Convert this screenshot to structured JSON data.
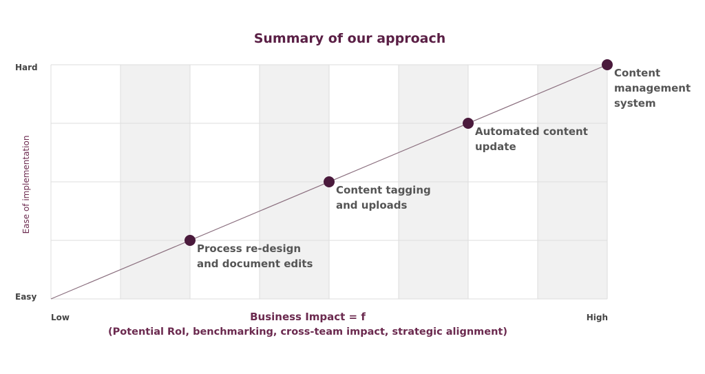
{
  "chart_data": {
    "type": "line",
    "title": "Summary of our approach",
    "xlabel": "Business Impact = f",
    "xlabel_sub": "(Potential RoI,  benchmarking, cross-team impact, strategic alignment)",
    "ylabel": "Ease of implementation",
    "x_tick_labels": {
      "low": "Low",
      "high": "High"
    },
    "y_tick_labels": {
      "low": "Easy",
      "high": "Hard"
    },
    "xlim": [
      0,
      8
    ],
    "ylim": [
      0,
      4
    ],
    "grid": true,
    "trend_line": {
      "from": [
        0,
        0
      ],
      "to": [
        8,
        4
      ]
    },
    "points": [
      {
        "x": 2,
        "y": 1,
        "label_lines": [
          "Process re-design",
          "and document edits"
        ]
      },
      {
        "x": 4,
        "y": 2,
        "label_lines": [
          "Content tagging",
          "and uploads"
        ]
      },
      {
        "x": 6,
        "y": 3,
        "label_lines": [
          "Automated content",
          "update"
        ]
      },
      {
        "x": 8,
        "y": 4,
        "label_lines": [
          "Content",
          "management",
          "system"
        ]
      }
    ],
    "colors": {
      "title": "#5a1f45",
      "point": "#4a1a3c",
      "line": "#8a6e7e",
      "band_shaded": "#f1f1f1",
      "grid": "#dddddd"
    }
  }
}
